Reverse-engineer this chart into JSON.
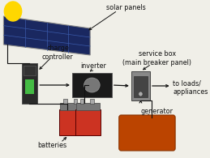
{
  "bg_color": "#f0efe8",
  "labels": {
    "solar_panels": "solar panels",
    "charge_controller": "charge\ncontroller",
    "inverter": "inverter",
    "service_box": "service box\n(main breaker panel)",
    "to_loads": "to loads/\nappliances",
    "batteries": "batteries",
    "generator": "generator"
  },
  "sun_color": "#FFD700",
  "panel_dark": "#1a2860",
  "panel_grid": "#3a5aaa",
  "panel_frame": "#888888",
  "controller_body": "#2a2a2a",
  "controller_accent": "#44bb44",
  "inverter_body": "#1a1a1a",
  "inverter_accent": "#777777",
  "service_box_color": "#888888",
  "service_box_dark": "#444444",
  "battery_body": "#cc3322",
  "battery_top": "#777777",
  "generator_color": "#bb4400",
  "arrow_color": "#111111",
  "text_color": "#111111",
  "label_fontsize": 5.8
}
